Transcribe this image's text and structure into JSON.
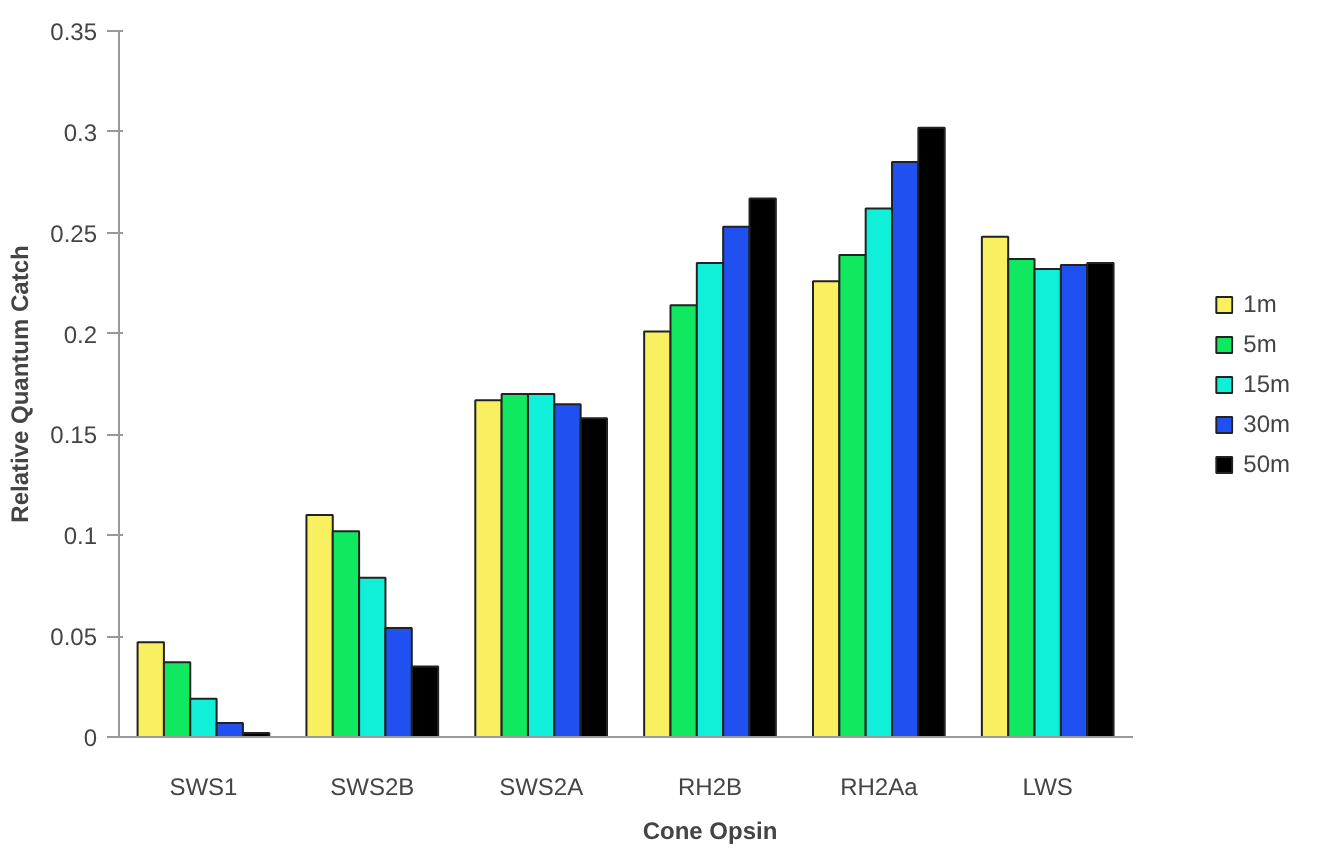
{
  "chart_data": {
    "type": "bar",
    "xlabel": "Cone Opsin",
    "ylabel": "Relative Quantum Catch",
    "categories": [
      "SWS1",
      "SWS2B",
      "SWS2A",
      "RH2B",
      "RH2Aa",
      "LWS"
    ],
    "series": [
      {
        "name": "1m",
        "color": "#f8f060",
        "values": [
          0.047,
          0.11,
          0.167,
          0.201,
          0.226,
          0.248
        ]
      },
      {
        "name": "5m",
        "color": "#10e860",
        "values": [
          0.037,
          0.102,
          0.17,
          0.214,
          0.239,
          0.237
        ]
      },
      {
        "name": "15m",
        "color": "#10f0d8",
        "values": [
          0.019,
          0.079,
          0.17,
          0.235,
          0.262,
          0.232
        ]
      },
      {
        "name": "30m",
        "color": "#2050f0",
        "values": [
          0.007,
          0.054,
          0.165,
          0.253,
          0.285,
          0.234
        ]
      },
      {
        "name": "50m",
        "color": "#000000",
        "values": [
          0.002,
          0.035,
          0.158,
          0.267,
          0.302,
          0.235
        ]
      }
    ],
    "ylim": [
      0,
      0.35
    ],
    "yticks": [
      0,
      0.05,
      0.1,
      0.15,
      0.2,
      0.25,
      0.3,
      0.35
    ],
    "grid": false,
    "legend": "right"
  }
}
